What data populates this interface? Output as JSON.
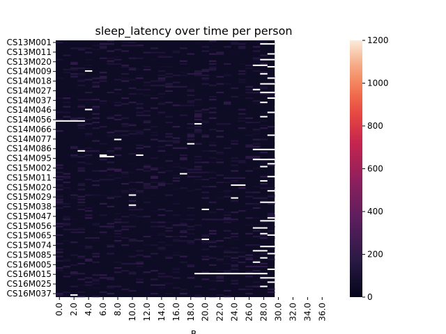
{
  "chart_data": {
    "type": "heatmap",
    "title": "sleep_latency over time per person",
    "xlabel": "B",
    "ylabel": "",
    "x_tick_labels": [
      "0.0",
      "2.0",
      "4.0",
      "6.0",
      "8.0",
      "10.0",
      "12.0",
      "14.0",
      "16.0",
      "18.0",
      "20.0",
      "22.0",
      "24.0",
      "26.0",
      "28.0",
      "30.0",
      "32.0",
      "34.0",
      "36.0"
    ],
    "y_tick_labels": [
      "CS13M001",
      "CS13M011",
      "CS13M020",
      "CS14M009",
      "CS14M018",
      "CS14M027",
      "CS14M037",
      "CS14M046",
      "CS14M056",
      "CS14M066",
      "CS14M077",
      "CS14M086",
      "CS14M095",
      "CS15M002",
      "CS15M011",
      "CS15M020",
      "CS15M029",
      "CS15M038",
      "CS15M047",
      "CS15M056",
      "CS15M065",
      "CS15M074",
      "CS15M085",
      "CS16M005",
      "CS16M015",
      "CS16M025",
      "CS16M037"
    ],
    "colorbar": {
      "vmin": 0,
      "vmax": 1200,
      "ticks": [
        0,
        200,
        400,
        600,
        800,
        1000,
        1200
      ],
      "colormap": "rocket",
      "low_color": "#03051a",
      "high_color": "#faebdd"
    },
    "background_color": "#0e0b24",
    "missing_color": "#ffffff",
    "highlights": [
      {
        "x": 9,
        "y": 3,
        "value": 140
      },
      {
        "x": 2,
        "y": 5,
        "value": 120
      },
      {
        "x": 14,
        "y": 11,
        "value": 130
      },
      {
        "x": 7,
        "y": 16,
        "value": 110
      },
      {
        "x": 20,
        "y": 20,
        "value": 150
      },
      {
        "x": 5,
        "y": 26,
        "value": 160
      },
      {
        "x": 13,
        "y": 31,
        "value": 140
      },
      {
        "x": 26,
        "y": 36,
        "value": 130
      },
      {
        "x": 3,
        "y": 41,
        "value": 120
      },
      {
        "x": 17,
        "y": 45,
        "value": 110
      },
      {
        "x": 11,
        "y": 52,
        "value": 150
      },
      {
        "x": 22,
        "y": 58,
        "value": 120
      },
      {
        "x": 8,
        "y": 63,
        "value": 140
      },
      {
        "x": 15,
        "y": 70,
        "value": 130
      },
      {
        "x": 4,
        "y": 77,
        "value": 150
      },
      {
        "x": 24,
        "y": 84,
        "value": 110
      },
      {
        "x": 18,
        "y": 90,
        "value": 140
      },
      {
        "x": 6,
        "y": 97,
        "value": 120
      },
      {
        "x": 12,
        "y": 103,
        "value": 130
      },
      {
        "x": 27,
        "y": 110,
        "value": 150
      },
      {
        "x": 10,
        "y": 118,
        "value": 120
      },
      {
        "x": 21,
        "y": 125,
        "value": 140
      },
      {
        "x": 1,
        "y": 132,
        "value": 130
      },
      {
        "x": 16,
        "y": 140,
        "value": 110
      },
      {
        "x": 23,
        "y": 148,
        "value": 150
      },
      {
        "x": 9,
        "y": 156,
        "value": 140
      },
      {
        "x": 14,
        "y": 165,
        "value": 120
      }
    ]
  }
}
